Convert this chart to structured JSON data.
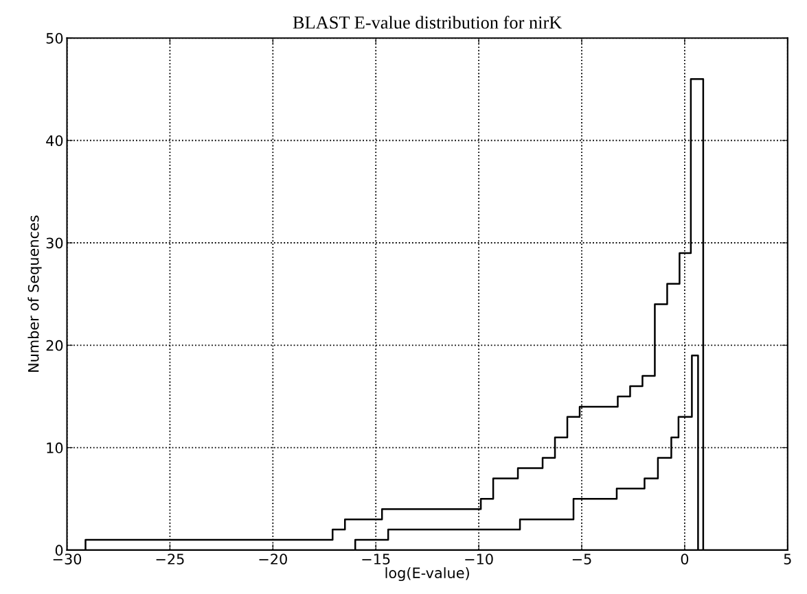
{
  "chart_data": {
    "type": "step",
    "title": "BLAST E-value distribution for nirK",
    "xlabel": "log(E-value)",
    "ylabel": "Number of Sequences",
    "series": [
      {
        "color": "#000000",
        "x": [
          -29.1,
          -29.1,
          -17.1,
          -16.5,
          -14.7,
          -9.9,
          -9.3,
          -8.1,
          -6.9,
          -6.3,
          -5.7,
          -5.1,
          -3.25,
          -2.65,
          -2.05,
          -1.45,
          -0.85,
          -0.25,
          0.3,
          0.9
        ],
        "values": [
          0,
          1,
          2,
          3,
          4,
          5,
          7,
          8,
          9,
          11,
          13,
          14,
          15,
          16,
          17,
          24,
          26,
          29,
          46,
          0
        ]
      },
      {
        "color": "#000000",
        "x": [
          -16.0,
          -16.0,
          -14.4,
          -8.0,
          -5.4,
          -3.3,
          -1.95,
          -1.3,
          -0.65,
          -0.3,
          0.35,
          0.65
        ],
        "values": [
          0,
          1,
          2,
          3,
          5,
          6,
          7,
          9,
          11,
          13,
          19,
          0
        ]
      }
    ],
    "xlim": [
      -30,
      5
    ],
    "xticks": [
      -30,
      -25,
      -20,
      -15,
      -10,
      -5,
      0,
      5
    ],
    "ylim": [
      0,
      50
    ],
    "yticks": [
      0,
      10,
      20,
      30,
      40,
      50
    ],
    "grid": true,
    "line_style": "solid",
    "marker": "none"
  }
}
